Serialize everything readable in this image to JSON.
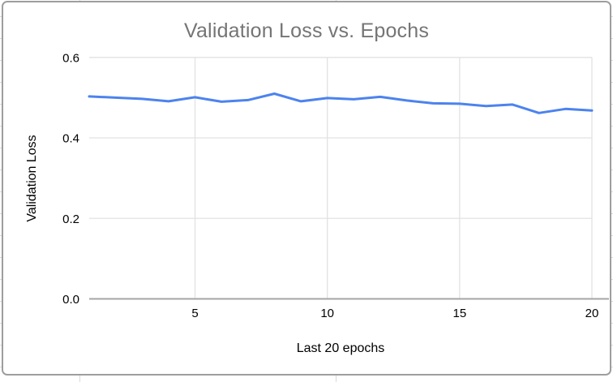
{
  "colors": {
    "series_line": "#4c83ee",
    "title_text": "#757575",
    "axis_text": "#000000",
    "gridline": "#e2e2e2",
    "axis_line": "#a6a6a6",
    "card_border": "#9e9e9e",
    "sheet_gridline": "#d9d9d9",
    "background": "#ffffff"
  },
  "chart_data": {
    "type": "line",
    "title": "Validation Loss vs. Epochs",
    "xlabel": "Last 20 epochs",
    "ylabel": "Validation Loss",
    "x": [
      1,
      2,
      3,
      4,
      5,
      6,
      7,
      8,
      9,
      10,
      11,
      12,
      13,
      14,
      15,
      16,
      17,
      18,
      19,
      20
    ],
    "series": [
      {
        "name": "Validation Loss",
        "values": [
          0.503,
          0.5,
          0.497,
          0.491,
          0.501,
          0.49,
          0.494,
          0.51,
          0.491,
          0.499,
          0.496,
          0.502,
          0.493,
          0.486,
          0.485,
          0.479,
          0.483,
          0.462,
          0.472,
          0.468
        ]
      }
    ],
    "xlim": [
      1,
      20
    ],
    "ylim": [
      0,
      0.6
    ],
    "x_ticks": [
      5,
      10,
      15,
      20
    ],
    "x_tick_labels": [
      "5",
      "10",
      "15",
      "20"
    ],
    "y_ticks": [
      0,
      0.2,
      0.4,
      0.6
    ],
    "y_tick_labels": [
      "0.0",
      "0.2",
      "0.4",
      "0.6"
    ],
    "grid": true,
    "legend": "none"
  }
}
